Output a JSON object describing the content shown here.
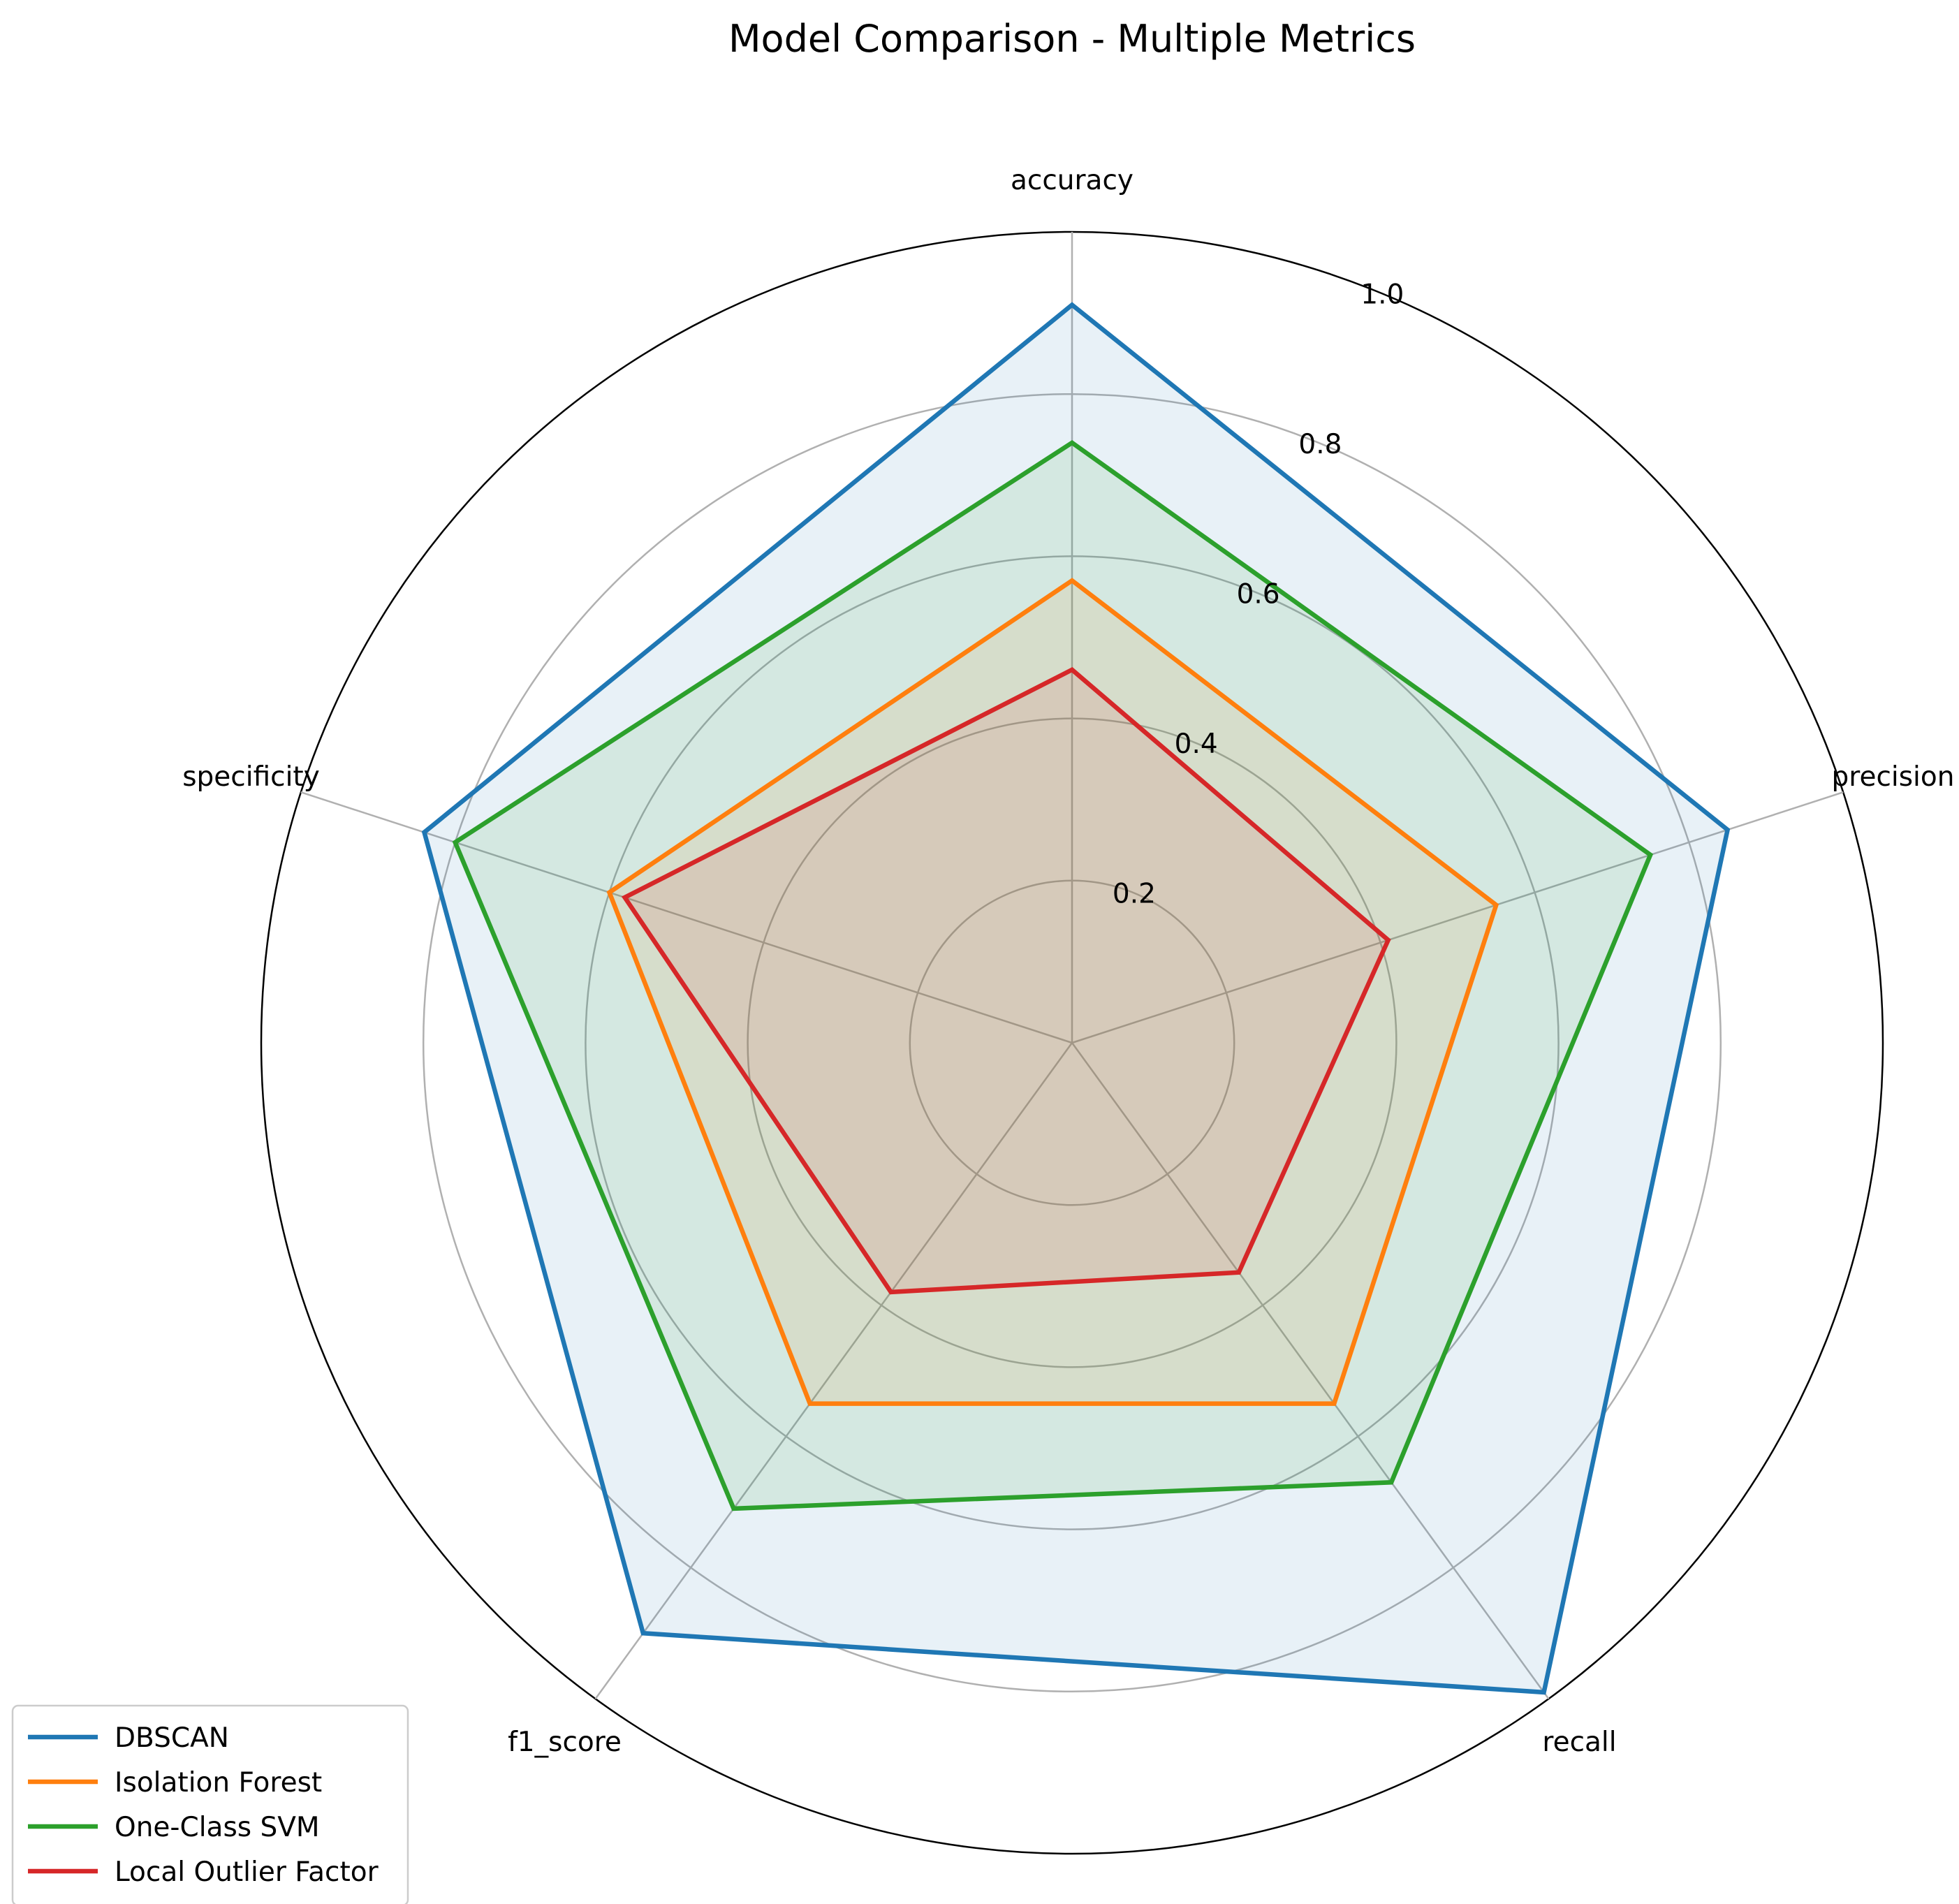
{
  "chart_data": {
    "type": "radar",
    "title": "Model Comparison - Multiple Metrics",
    "categories": [
      "accuracy",
      "precision",
      "recall",
      "f1_score",
      "specificity"
    ],
    "rlim": [
      0,
      1.0
    ],
    "rticks": [
      0.2,
      0.4,
      0.6,
      0.8,
      1.0
    ],
    "rtick_labels": [
      "0.2",
      "0.4",
      "0.6",
      "0.8",
      "1.0"
    ],
    "grid": true,
    "legend_position": "lower-left",
    "series": [
      {
        "name": "DBSCAN",
        "color": "#1f77b4",
        "values": [
          0.91,
          0.85,
          0.99,
          0.9,
          0.84
        ]
      },
      {
        "name": "Isolation Forest",
        "color": "#ff7f0e",
        "values": [
          0.57,
          0.55,
          0.55,
          0.55,
          0.6
        ]
      },
      {
        "name": "One-Class SVM",
        "color": "#2ca02c",
        "values": [
          0.74,
          0.75,
          0.67,
          0.71,
          0.8
        ]
      },
      {
        "name": "Local Outlier Factor",
        "color": "#d62728",
        "values": [
          0.46,
          0.41,
          0.35,
          0.38,
          0.58
        ]
      }
    ]
  }
}
